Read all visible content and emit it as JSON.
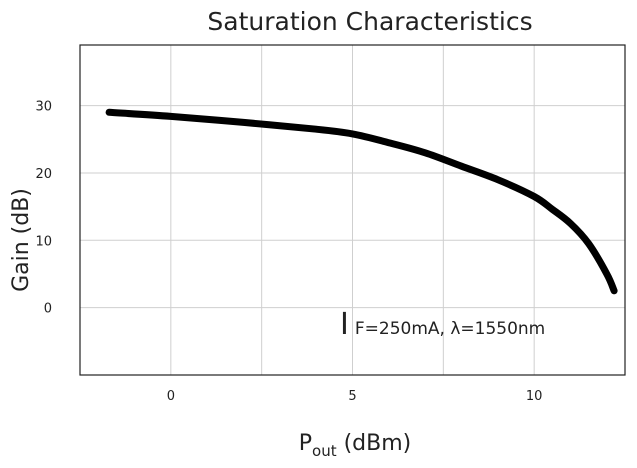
{
  "chart_data": {
    "type": "line",
    "title": "Saturation Characteristics",
    "xlabel": "P",
    "xlabel_sub": "out",
    "xlabel_unit": " (dBm)",
    "ylabel": "Gain (dB)",
    "xlim": [
      -2.5,
      12.5
    ],
    "ylim": [
      -10,
      39
    ],
    "xticks": [
      0,
      5,
      10
    ],
    "yticks": [
      0,
      10,
      20,
      30
    ],
    "grid": true,
    "annotation": {
      "symbol": "I",
      "text": "F=250mA,  λ=1550nm",
      "position": "bottom-right"
    },
    "series": [
      {
        "x": [
          -1.7,
          0,
          2,
          4,
          5,
          6,
          7,
          8,
          9,
          10,
          10.5,
          11,
          11.5,
          12,
          12.2
        ],
        "y": [
          29,
          28.4,
          27.5,
          26.5,
          25.8,
          24.5,
          23,
          21,
          19,
          16.5,
          14.6,
          12.5,
          9.5,
          5,
          2.5
        ]
      }
    ]
  }
}
